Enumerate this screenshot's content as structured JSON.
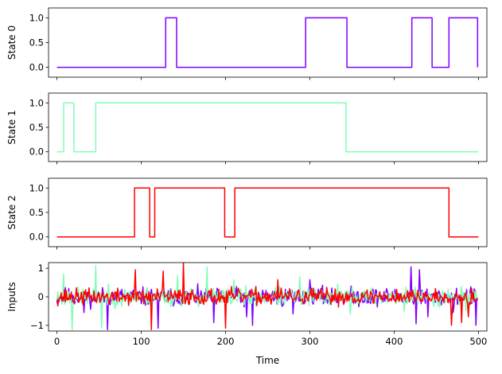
{
  "chart_data": [
    {
      "type": "line",
      "ylabel": "State 0",
      "xlim": [
        -10,
        510
      ],
      "ylim": [
        -0.2,
        1.2
      ],
      "yticks": [
        0.0,
        0.5,
        1.0
      ],
      "ytick_labels": [
        "0.0",
        "0.5",
        "1.0"
      ],
      "xticks": [
        0,
        100,
        200,
        300,
        400,
        500
      ],
      "show_xtick_labels": false,
      "series": [
        {
          "color": "#8000ff",
          "step": [
            [
              0,
              0
            ],
            [
              129,
              1
            ],
            [
              142,
              0
            ],
            [
              295,
              1
            ],
            [
              344,
              0
            ],
            [
              421,
              1
            ],
            [
              445,
              0
            ],
            [
              465,
              1
            ],
            [
              499,
              0
            ]
          ]
        }
      ]
    },
    {
      "type": "line",
      "ylabel": "State 1",
      "xlim": [
        -10,
        510
      ],
      "ylim": [
        -0.2,
        1.2
      ],
      "yticks": [
        0.0,
        0.5,
        1.0
      ],
      "ytick_labels": [
        "0.0",
        "0.5",
        "1.0"
      ],
      "xticks": [
        0,
        100,
        200,
        300,
        400,
        500
      ],
      "show_xtick_labels": false,
      "series": [
        {
          "color": "#80ffb4",
          "step": [
            [
              0,
              0
            ],
            [
              8,
              1
            ],
            [
              20,
              0
            ],
            [
              46,
              1
            ],
            [
              343,
              0
            ],
            [
              500,
              0
            ]
          ]
        }
      ]
    },
    {
      "type": "line",
      "ylabel": "State 2",
      "xlim": [
        -10,
        510
      ],
      "ylim": [
        -0.2,
        1.2
      ],
      "yticks": [
        0.0,
        0.5,
        1.0
      ],
      "ytick_labels": [
        "0.0",
        "0.5",
        "1.0"
      ],
      "xticks": [
        0,
        100,
        200,
        300,
        400,
        500
      ],
      "show_xtick_labels": false,
      "series": [
        {
          "color": "#ff0000",
          "step": [
            [
              0,
              0
            ],
            [
              92,
              1
            ],
            [
              110,
              0
            ],
            [
              116,
              1
            ],
            [
              199,
              0
            ],
            [
              211,
              1
            ],
            [
              465,
              0
            ],
            [
              500,
              0
            ]
          ]
        }
      ]
    },
    {
      "type": "line",
      "ylabel": "Inputs",
      "xlabel": "Time",
      "xlim": [
        -10,
        510
      ],
      "ylim": [
        -1.2,
        1.2
      ],
      "yticks": [
        -1,
        0,
        1
      ],
      "ytick_labels": [
        "−1",
        "0",
        "1"
      ],
      "xticks": [
        0,
        100,
        200,
        300,
        400,
        500
      ],
      "xtick_labels": [
        "0",
        "100",
        "200",
        "300",
        "400",
        "500"
      ],
      "show_xtick_labels": true,
      "series": [
        {
          "color": "#8000ff",
          "noise": {
            "seed": 11,
            "n": 500,
            "amp": 0.16
          },
          "spikes": [
            [
              32,
              -0.55
            ],
            [
              60,
              -1.15
            ],
            [
              120,
              -1.1
            ],
            [
              186,
              -0.9
            ],
            [
              225,
              -0.7
            ],
            [
              232,
              -1.0
            ],
            [
              280,
              -0.6
            ],
            [
              300,
              0.6
            ],
            [
              420,
              1.05
            ],
            [
              426,
              -0.95
            ],
            [
              430,
              0.95
            ],
            [
              440,
              -0.7
            ],
            [
              470,
              -0.55
            ],
            [
              497,
              -1.0
            ]
          ]
        },
        {
          "color": "#80ffb4",
          "noise": {
            "seed": 23,
            "n": 500,
            "amp": 0.16
          },
          "spikes": [
            [
              8,
              0.8
            ],
            [
              18,
              -1.15
            ],
            [
              46,
              1.1
            ],
            [
              53,
              -1.1
            ],
            [
              143,
              0.75
            ],
            [
              178,
              1.05
            ],
            [
              210,
              0.6
            ],
            [
              288,
              0.7
            ],
            [
              333,
              0.45
            ],
            [
              348,
              -0.6
            ],
            [
              412,
              -0.5
            ],
            [
              485,
              -0.5
            ]
          ]
        },
        {
          "color": "#ff0000",
          "noise": {
            "seed": 37,
            "n": 500,
            "amp": 0.14
          },
          "spikes": [
            [
              93,
              0.95
            ],
            [
              112,
              -1.15
            ],
            [
              126,
              0.9
            ],
            [
              150,
              1.2
            ],
            [
              200,
              -1.1
            ],
            [
              262,
              0.6
            ],
            [
              468,
              -1.0
            ],
            [
              480,
              -0.9
            ],
            [
              488,
              -0.7
            ]
          ]
        }
      ]
    }
  ]
}
